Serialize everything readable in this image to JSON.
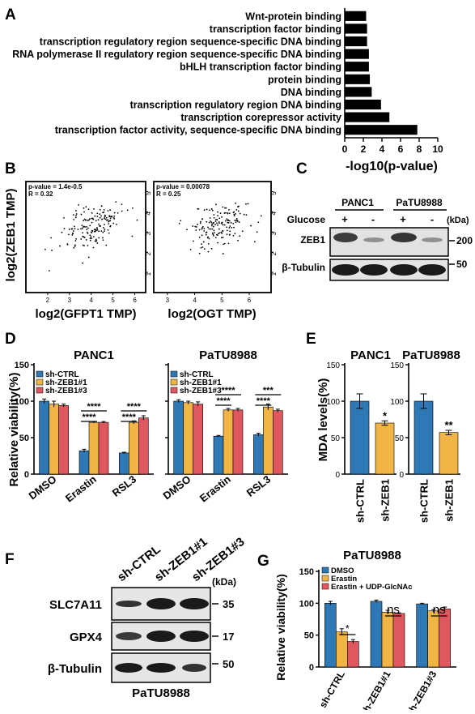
{
  "panels": {
    "A": {
      "label": "A",
      "chart_data": {
        "type": "bar",
        "orientation": "horizontal",
        "categories": [
          "Wnt-protein binding",
          "transcription factor binding",
          "transcription regulatory region sequence-specific DNA binding",
          "RNA polymerase II regulatory region sequence-specific DNA binding",
          "bHLH transcription factor binding",
          "protein binding",
          "DNA binding",
          "transcription regulatory region DNA binding",
          "transcription corepressor activity",
          "transcription factor activity, sequence-specific DNA binding"
        ],
        "values": [
          2.3,
          2.4,
          2.4,
          2.6,
          2.6,
          2.7,
          2.9,
          3.9,
          4.8,
          7.8
        ],
        "xlabel": "-log10(p-value)",
        "xlim": [
          0,
          10
        ],
        "xticks": [
          "0",
          "2",
          "4",
          "6",
          "8",
          "10"
        ],
        "color": "#000000"
      }
    },
    "B": {
      "label": "B",
      "chart_data": [
        {
          "type": "scatter",
          "annotation_p": "p-value = 1.4e-0.5",
          "annotation_r": "R = 0.32",
          "xlabel": "log2(GFPT1 TMP)",
          "ylabel": "log2(ZEB1 TMP)",
          "xlim": [
            1,
            6.5
          ],
          "ylim": [
            0,
            5.5
          ],
          "xticks": [
            "2",
            "3",
            "4",
            "5",
            "6"
          ],
          "yticks": [
            "1",
            "2",
            "3",
            "4",
            "5"
          ],
          "seed": 11
        },
        {
          "type": "scatter",
          "annotation_p": "p-value = 0.00078",
          "annotation_r": "R = 0.25",
          "xlabel": "log2(OGT TMP)",
          "ylabel": "",
          "xlim": [
            2.5,
            6.8
          ],
          "ylim": [
            0,
            5.5
          ],
          "xticks": [
            "3",
            "4",
            "5",
            "6"
          ],
          "yticks": [
            "1",
            "2",
            "3",
            "4",
            "5"
          ],
          "seed": 29
        }
      ]
    },
    "C": {
      "label": "C",
      "cell_lines": [
        "PANC1",
        "PaTU8988"
      ],
      "row_labels": [
        "Glucose",
        "ZEB1",
        "β-Tubulin"
      ],
      "glucose": [
        "+",
        "-",
        "+",
        "-"
      ],
      "unit": "(kDa)",
      "markers": [
        "200",
        "50"
      ]
    },
    "D": {
      "label": "D",
      "ylabel": "Relative viability(%)",
      "chart_data": [
        {
          "type": "bar",
          "title": "PANC1",
          "categories": [
            "DMSO",
            "Erastin",
            "RSL3"
          ],
          "series": [
            {
              "name": "sh-CTRL",
              "values": [
                100,
                32,
                29
              ],
              "errors": [
                3,
                2,
                1
              ],
              "color": "#2f78b6"
            },
            {
              "name": "sh-ZEB1#1",
              "values": [
                96,
                71,
                71
              ],
              "errors": [
                4,
                1,
                2
              ],
              "color": "#f0b545"
            },
            {
              "name": "sh-ZEB1#3",
              "values": [
                94,
                71,
                77
              ],
              "errors": [
                2,
                1,
                3
              ],
              "color": "#e0585f"
            }
          ],
          "ylim": [
            0,
            150
          ],
          "yticks": [
            "0",
            "50",
            "100",
            "150"
          ],
          "significance": [
            {
              "category": "Erastin",
              "pairs": [
                [
                  "****",
                  0,
                  1
                ],
                [
                  "****",
                  0,
                  2
                ]
              ]
            },
            {
              "category": "RSL3",
              "pairs": [
                [
                  "****",
                  0,
                  1
                ],
                [
                  "****",
                  0,
                  2
                ]
              ]
            }
          ]
        },
        {
          "type": "bar",
          "title": "PaTU8988",
          "categories": [
            "DMSO",
            "Erastin",
            "RSL3"
          ],
          "series": [
            {
              "name": "sh-CTRL",
              "values": [
                100,
                52,
                54
              ],
              "errors": [
                2,
                1,
                2
              ],
              "color": "#2f78b6"
            },
            {
              "name": "sh-ZEB1#1",
              "values": [
                98,
                88,
                92
              ],
              "errors": [
                2,
                2,
                4
              ],
              "color": "#f0b545"
            },
            {
              "name": "sh-ZEB1#3",
              "values": [
                96,
                88,
                87
              ],
              "errors": [
                3,
                2,
                2
              ],
              "color": "#e0585f"
            }
          ],
          "ylim": [
            0,
            150
          ],
          "yticks": [
            "0",
            "50",
            "100",
            "150"
          ],
          "significance": [
            {
              "category": "Erastin",
              "pairs": [
                [
                  "****",
                  0,
                  1
                ],
                [
                  "****",
                  0,
                  2
                ]
              ]
            },
            {
              "category": "RSL3",
              "pairs": [
                [
                  "****",
                  0,
                  1
                ],
                [
                  "***",
                  0,
                  2
                ]
              ]
            }
          ]
        }
      ]
    },
    "E": {
      "label": "E",
      "ylabel": "MDA levels(%)",
      "chart_data": [
        {
          "type": "bar",
          "title": "PANC1",
          "categories": [
            "sh-CTRL",
            "sh-ZEB1"
          ],
          "values": [
            100,
            70
          ],
          "errors": [
            10,
            3
          ],
          "colors": [
            "#2f78b6",
            "#f0b545"
          ],
          "sig": "*",
          "ylim": [
            0,
            150
          ],
          "yticks": [
            "0",
            "50",
            "100",
            "150"
          ]
        },
        {
          "type": "bar",
          "title": "PaTU8988",
          "categories": [
            "sh-CTRL",
            "sh-ZEB1"
          ],
          "values": [
            100,
            57
          ],
          "errors": [
            10,
            3
          ],
          "colors": [
            "#2f78b6",
            "#f0b545"
          ],
          "sig": "**",
          "ylim": [
            0,
            150
          ],
          "yticks": [
            "0",
            "50",
            "100",
            "150"
          ]
        }
      ]
    },
    "F": {
      "label": "F",
      "lanes": [
        "sh-CTRL",
        "sh-ZEB1#1",
        "sh-ZEB1#3"
      ],
      "unit": "(kDa)",
      "rows": [
        {
          "name": "SLC7A11",
          "marker": "35"
        },
        {
          "name": "GPX4",
          "marker": "17"
        },
        {
          "name": "β-Tubulin",
          "marker": "50"
        }
      ],
      "cell_line": "PaTU8988"
    },
    "G": {
      "label": "G",
      "chart_data": {
        "type": "bar",
        "title": "PaTU8988",
        "ylabel": "Relative viability(%)",
        "categories": [
          "sh-CTRL",
          "sh-ZEB1#1",
          "sh-ZEB1#3"
        ],
        "series": [
          {
            "name": "DMSO",
            "values": [
              100,
              103,
              99
            ],
            "errors": [
              3,
              2,
              1
            ],
            "color": "#2f78b6"
          },
          {
            "name": "Erastin",
            "values": [
              55,
              86,
              88
            ],
            "errors": [
              5,
              3,
              2
            ],
            "color": "#f0b545"
          },
          {
            "name": "Erastin + UDP-GlcNAc",
            "values": [
              40,
              84,
              91
            ],
            "errors": [
              3,
              1,
              3
            ],
            "color": "#e0585f"
          }
        ],
        "ylim": [
          0,
          150
        ],
        "yticks": [
          "0",
          "50",
          "100",
          "150"
        ],
        "significance": [
          {
            "category": "sh-CTRL",
            "label": "*"
          },
          {
            "category": "sh-ZEB1#1",
            "label": "ns"
          },
          {
            "category": "sh-ZEB1#3",
            "label": "ns"
          }
        ]
      }
    }
  }
}
